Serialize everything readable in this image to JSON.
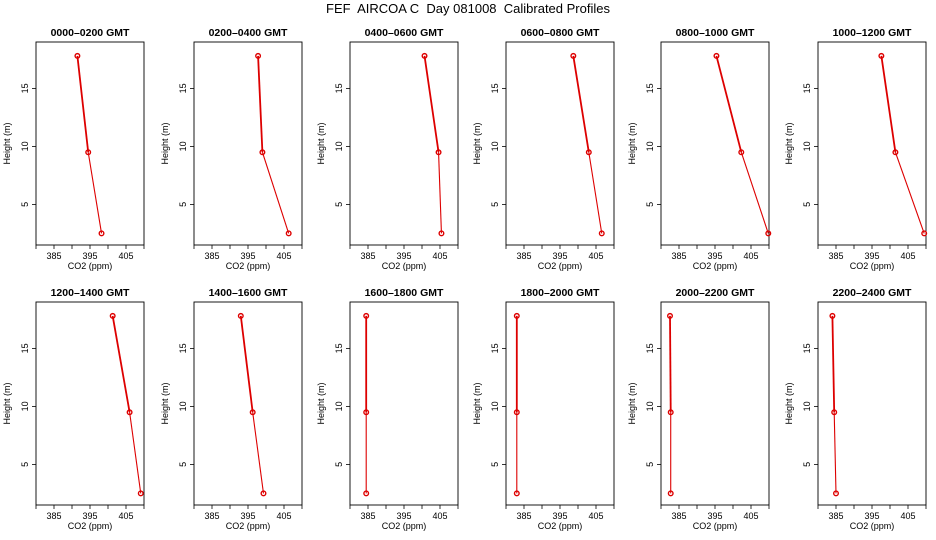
{
  "figure": {
    "title": "FEF  AIRCOA C  Day 081008  Calibrated Profiles"
  },
  "chart_data": [
    {
      "type": "line",
      "title": "0000–0200 GMT",
      "xlabel": "CO2 (ppm)",
      "ylabel": "Height (m)",
      "xlim": [
        380,
        410
      ],
      "ylim": [
        1.5,
        19
      ],
      "x_ticks": [
        385,
        395,
        405
      ],
      "y_ticks": [
        5,
        10,
        15
      ],
      "series": [
        {
          "x": [
            398.2,
            394.5,
            391.5
          ],
          "y": [
            2.5,
            9.5,
            17.8
          ]
        }
      ]
    },
    {
      "type": "line",
      "title": "0200–0400 GMT",
      "xlabel": "CO2 (ppm)",
      "ylabel": "Height (m)",
      "xlim": [
        380,
        410
      ],
      "ylim": [
        1.5,
        19
      ],
      "x_ticks": [
        385,
        395,
        405
      ],
      "y_ticks": [
        5,
        10,
        15
      ],
      "series": [
        {
          "x": [
            406.3,
            399.0,
            397.8
          ],
          "y": [
            2.5,
            9.5,
            17.8
          ]
        }
      ]
    },
    {
      "type": "line",
      "title": "0400–0600 GMT",
      "xlabel": "CO2 (ppm)",
      "ylabel": "Height (m)",
      "xlim": [
        380,
        410
      ],
      "ylim": [
        1.5,
        19
      ],
      "x_ticks": [
        385,
        395,
        405
      ],
      "y_ticks": [
        5,
        10,
        15
      ],
      "series": [
        {
          "x": [
            405.4,
            404.6,
            400.7
          ],
          "y": [
            2.5,
            9.5,
            17.8
          ]
        }
      ]
    },
    {
      "type": "line",
      "title": "0600–0800 GMT",
      "xlabel": "CO2 (ppm)",
      "ylabel": "Height (m)",
      "xlim": [
        380,
        410
      ],
      "ylim": [
        1.5,
        19
      ],
      "x_ticks": [
        385,
        395,
        405
      ],
      "y_ticks": [
        5,
        10,
        15
      ],
      "series": [
        {
          "x": [
            406.6,
            403.0,
            398.7
          ],
          "y": [
            2.5,
            9.5,
            17.8
          ]
        }
      ]
    },
    {
      "type": "line",
      "title": "0800–1000 GMT",
      "xlabel": "CO2 (ppm)",
      "ylabel": "Height (m)",
      "xlim": [
        380,
        410
      ],
      "ylim": [
        1.5,
        19
      ],
      "x_ticks": [
        385,
        395,
        405
      ],
      "y_ticks": [
        5,
        10,
        15
      ],
      "series": [
        {
          "x": [
            409.8,
            402.3,
            395.4
          ],
          "y": [
            2.5,
            9.5,
            17.8
          ]
        }
      ]
    },
    {
      "type": "line",
      "title": "1000–1200 GMT",
      "xlabel": "CO2 (ppm)",
      "ylabel": "Height (m)",
      "xlim": [
        380,
        410
      ],
      "ylim": [
        1.5,
        19
      ],
      "x_ticks": [
        385,
        395,
        405
      ],
      "y_ticks": [
        5,
        10,
        15
      ],
      "series": [
        {
          "x": [
            409.5,
            401.5,
            397.6
          ],
          "y": [
            2.5,
            9.5,
            17.8
          ]
        }
      ]
    },
    {
      "type": "line",
      "title": "1200–1400 GMT",
      "xlabel": "CO2 (ppm)",
      "ylabel": "Height (m)",
      "xlim": [
        380,
        410
      ],
      "ylim": [
        1.5,
        19
      ],
      "x_ticks": [
        385,
        395,
        405
      ],
      "y_ticks": [
        5,
        10,
        15
      ],
      "series": [
        {
          "x": [
            409.1,
            406.0,
            401.3
          ],
          "y": [
            2.5,
            9.5,
            17.8
          ]
        }
      ]
    },
    {
      "type": "line",
      "title": "1400–1600 GMT",
      "xlabel": "CO2 (ppm)",
      "ylabel": "Height (m)",
      "xlim": [
        380,
        410
      ],
      "ylim": [
        1.5,
        19
      ],
      "x_ticks": [
        385,
        395,
        405
      ],
      "y_ticks": [
        5,
        10,
        15
      ],
      "series": [
        {
          "x": [
            399.3,
            396.3,
            393.0
          ],
          "y": [
            2.5,
            9.5,
            17.8
          ]
        }
      ]
    },
    {
      "type": "line",
      "title": "1600–1800 GMT",
      "xlabel": "CO2 (ppm)",
      "ylabel": "Height (m)",
      "xlim": [
        380,
        410
      ],
      "ylim": [
        1.5,
        19
      ],
      "x_ticks": [
        385,
        395,
        405
      ],
      "y_ticks": [
        5,
        10,
        15
      ],
      "series": [
        {
          "x": [
            384.5,
            384.5,
            384.5
          ],
          "y": [
            2.5,
            9.5,
            17.8
          ]
        }
      ]
    },
    {
      "type": "line",
      "title": "1800–2000 GMT",
      "xlabel": "CO2 (ppm)",
      "ylabel": "Height (m)",
      "xlim": [
        380,
        410
      ],
      "ylim": [
        1.5,
        19
      ],
      "x_ticks": [
        385,
        395,
        405
      ],
      "y_ticks": [
        5,
        10,
        15
      ],
      "series": [
        {
          "x": [
            383.0,
            383.0,
            383.0
          ],
          "y": [
            2.5,
            9.5,
            17.8
          ]
        }
      ]
    },
    {
      "type": "line",
      "title": "2000–2200 GMT",
      "xlabel": "CO2 (ppm)",
      "ylabel": "Height (m)",
      "xlim": [
        380,
        410
      ],
      "ylim": [
        1.5,
        19
      ],
      "x_ticks": [
        385,
        395,
        405
      ],
      "y_ticks": [
        5,
        10,
        15
      ],
      "series": [
        {
          "x": [
            382.7,
            382.7,
            382.5
          ],
          "y": [
            2.5,
            9.5,
            17.8
          ]
        }
      ]
    },
    {
      "type": "line",
      "title": "2200–2400 GMT",
      "xlabel": "CO2 (ppm)",
      "ylabel": "Height (m)",
      "xlim": [
        380,
        410
      ],
      "ylim": [
        1.5,
        19
      ],
      "x_ticks": [
        385,
        395,
        405
      ],
      "y_ticks": [
        5,
        10,
        15
      ],
      "series": [
        {
          "x": [
            385.0,
            384.5,
            384.0
          ],
          "y": [
            2.5,
            9.5,
            17.8
          ]
        }
      ]
    }
  ],
  "colors": {
    "series": "#dd0000",
    "axis": "#000000",
    "background": "#ffffff"
  }
}
